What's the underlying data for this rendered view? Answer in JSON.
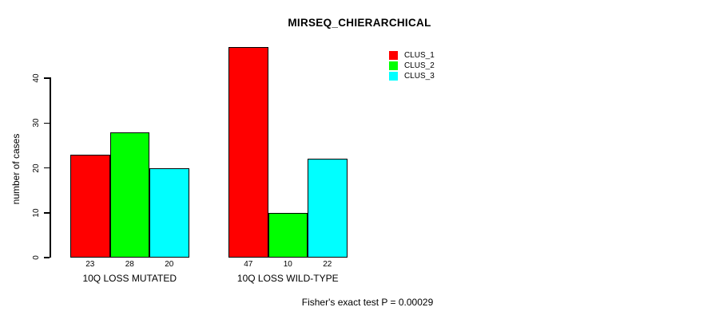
{
  "chart_data": {
    "type": "bar",
    "title": "MIRSEQ_CHIERARCHICAL",
    "ylabel": "number of cases",
    "xlabel": "",
    "categories": [
      "10Q LOSS MUTATED",
      "10Q LOSS WILD-TYPE"
    ],
    "series": [
      {
        "name": "CLUS_1",
        "color": "#ff0000",
        "values": [
          23,
          47
        ]
      },
      {
        "name": "CLUS_2",
        "color": "#00ff00",
        "values": [
          28,
          10
        ]
      },
      {
        "name": "CLUS_3",
        "color": "#00ffff",
        "values": [
          20,
          22
        ]
      }
    ],
    "yticks": [
      0,
      10,
      20,
      30,
      40
    ],
    "ylim": [
      0,
      47
    ],
    "grid": false,
    "legend_position": "top-right",
    "bar_border_color": "#000000",
    "background_color": "#ffffff",
    "annotation": "Fisher's exact test P = 0.00029"
  }
}
